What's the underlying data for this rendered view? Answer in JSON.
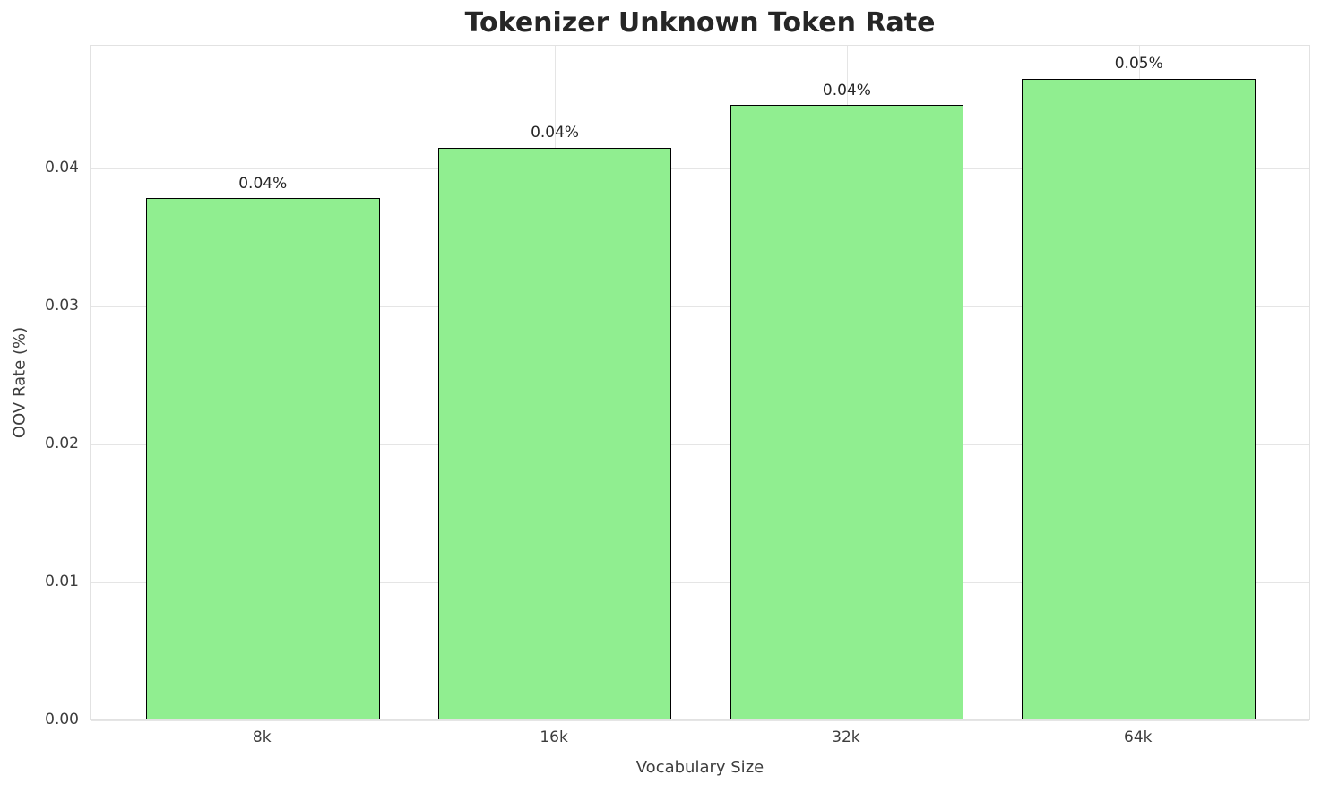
{
  "chart_data": {
    "type": "bar",
    "title": "Tokenizer Unknown Token Rate",
    "xlabel": "Vocabulary Size",
    "ylabel": "OOV Rate (%)",
    "categories": [
      "8k",
      "16k",
      "32k",
      "64k"
    ],
    "values": [
      0.0377,
      0.0414,
      0.0445,
      0.0464
    ],
    "bar_labels": [
      "0.04%",
      "0.04%",
      "0.04%",
      "0.05%"
    ],
    "ylim": [
      0,
      0.0489
    ],
    "yticks": [
      0,
      0.01,
      0.02,
      0.03,
      0.04
    ],
    "ytick_labels": [
      "0.00",
      "0.01",
      "0.02",
      "0.03",
      "0.04"
    ],
    "grid": true,
    "legend_position": "none",
    "colors": {
      "bar_fill": "#90ee90",
      "bar_edge": "#000000",
      "grid": "#e5e5e5",
      "title_text": "#262626",
      "tick_text": "#3d3d3d",
      "background": "#ffffff"
    }
  }
}
